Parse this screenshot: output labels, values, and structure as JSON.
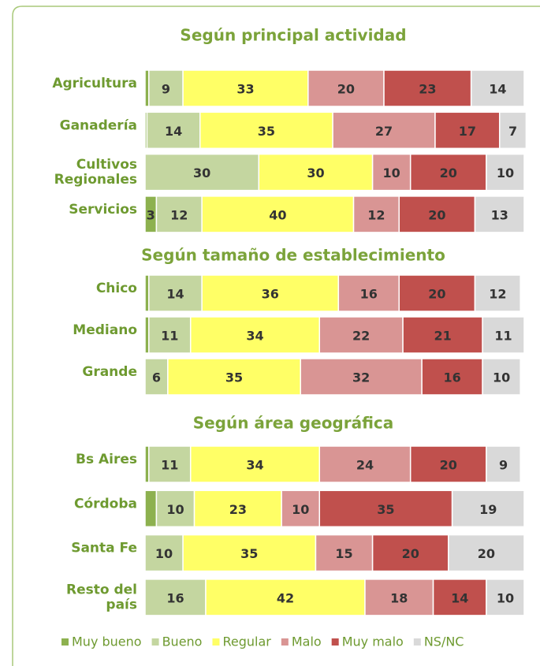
{
  "chart_data": [
    {
      "type": "stacked-bar-horizontal",
      "title": "Según principal actividad",
      "categories": [
        [
          "Agricultura"
        ],
        [
          "Ganadería"
        ],
        [
          "Cultivos",
          "Regionales"
        ],
        [
          "Servicios"
        ]
      ],
      "xlim": [
        0,
        100
      ],
      "series": [
        {
          "name": "Muy bueno",
          "color": "#8db14f",
          "values": [
            1,
            0.5,
            0,
            3
          ],
          "value_labels": [
            null,
            null,
            null,
            "3"
          ]
        },
        {
          "name": "Bueno",
          "color": "#c4d6a0",
          "values": [
            9,
            14,
            30,
            12
          ]
        },
        {
          "name": "Regular",
          "color": "#ffff66",
          "values": [
            33,
            35,
            30,
            40
          ]
        },
        {
          "name": "Malo",
          "color": "#d99594",
          "values": [
            20,
            27,
            10,
            12
          ]
        },
        {
          "name": "Muy malo",
          "color": "#c0504d",
          "values": [
            23,
            17,
            20,
            20
          ]
        },
        {
          "name": "NS/NC",
          "color": "#d9d9d9",
          "values": [
            14,
            7,
            10,
            13
          ]
        }
      ],
      "legend": "bottom"
    },
    {
      "type": "stacked-bar-horizontal",
      "title": "Según tamaño de establecimiento",
      "categories": [
        [
          "Chico"
        ],
        [
          "Mediano"
        ],
        [
          "Grande"
        ]
      ],
      "xlim": [
        0,
        100
      ],
      "series": [
        {
          "name": "Muy bueno",
          "color": "#8db14f",
          "values": [
            1,
            1,
            0
          ],
          "value_labels": [
            null,
            null,
            null
          ]
        },
        {
          "name": "Bueno",
          "color": "#c4d6a0",
          "values": [
            14,
            11,
            6
          ]
        },
        {
          "name": "Regular",
          "color": "#ffff66",
          "values": [
            36,
            34,
            35
          ]
        },
        {
          "name": "Malo",
          "color": "#d99594",
          "values": [
            16,
            22,
            32
          ]
        },
        {
          "name": "Muy malo",
          "color": "#c0504d",
          "values": [
            20,
            21,
            16
          ]
        },
        {
          "name": "NS/NC",
          "color": "#d9d9d9",
          "values": [
            12,
            11,
            10
          ]
        }
      ]
    },
    {
      "type": "stacked-bar-horizontal",
      "title": "Según área geográfica",
      "categories": [
        [
          "Bs Aires"
        ],
        [
          "Córdoba"
        ],
        [
          "Santa Fe"
        ],
        [
          "Resto del",
          "país"
        ]
      ],
      "xlim": [
        0,
        100
      ],
      "series": [
        {
          "name": "Muy bueno",
          "color": "#8db14f",
          "values": [
            1,
            3,
            0,
            0
          ],
          "value_labels": [
            null,
            null,
            null,
            null
          ]
        },
        {
          "name": "Bueno",
          "color": "#c4d6a0",
          "values": [
            11,
            10,
            10,
            16
          ]
        },
        {
          "name": "Regular",
          "color": "#ffff66",
          "values": [
            34,
            23,
            35,
            42
          ]
        },
        {
          "name": "Malo",
          "color": "#d99594",
          "values": [
            24,
            10,
            15,
            18
          ]
        },
        {
          "name": "Muy malo",
          "color": "#c0504d",
          "values": [
            20,
            35,
            20,
            14
          ]
        },
        {
          "name": "NS/NC",
          "color": "#d9d9d9",
          "values": [
            9,
            19,
            20,
            10
          ]
        }
      ]
    }
  ]
}
